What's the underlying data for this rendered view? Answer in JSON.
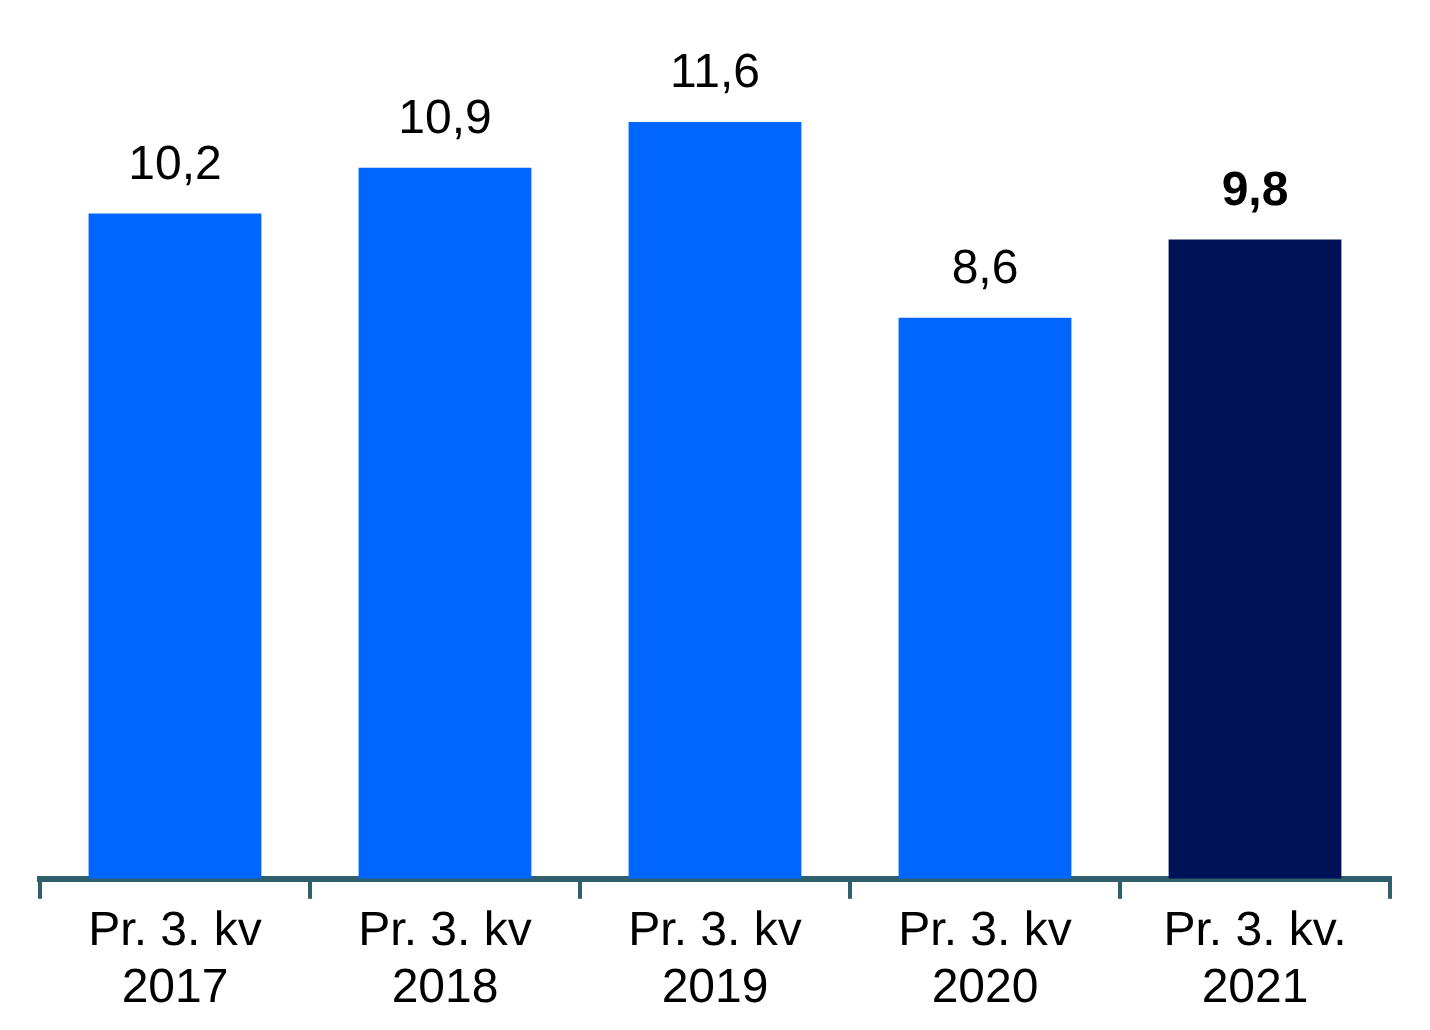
{
  "chart_data": {
    "type": "bar",
    "categories": [
      "Pr. 3. kv\n2017",
      "Pr. 3. kv\n2018",
      "Pr. 3. kv\n2019",
      "Pr. 3. kv\n2020",
      "Pr. 3. kv.\n2021"
    ],
    "values": [
      10.2,
      10.9,
      11.6,
      8.6,
      9.8
    ],
    "colors": [
      "#0066ff",
      "#0066ff",
      "#0066ff",
      "#0066ff",
      "#001257"
    ],
    "value_labels": [
      "10,2",
      "10,9",
      "11,6",
      "8,6",
      "9,8"
    ],
    "grid": false,
    "legend": false
  }
}
